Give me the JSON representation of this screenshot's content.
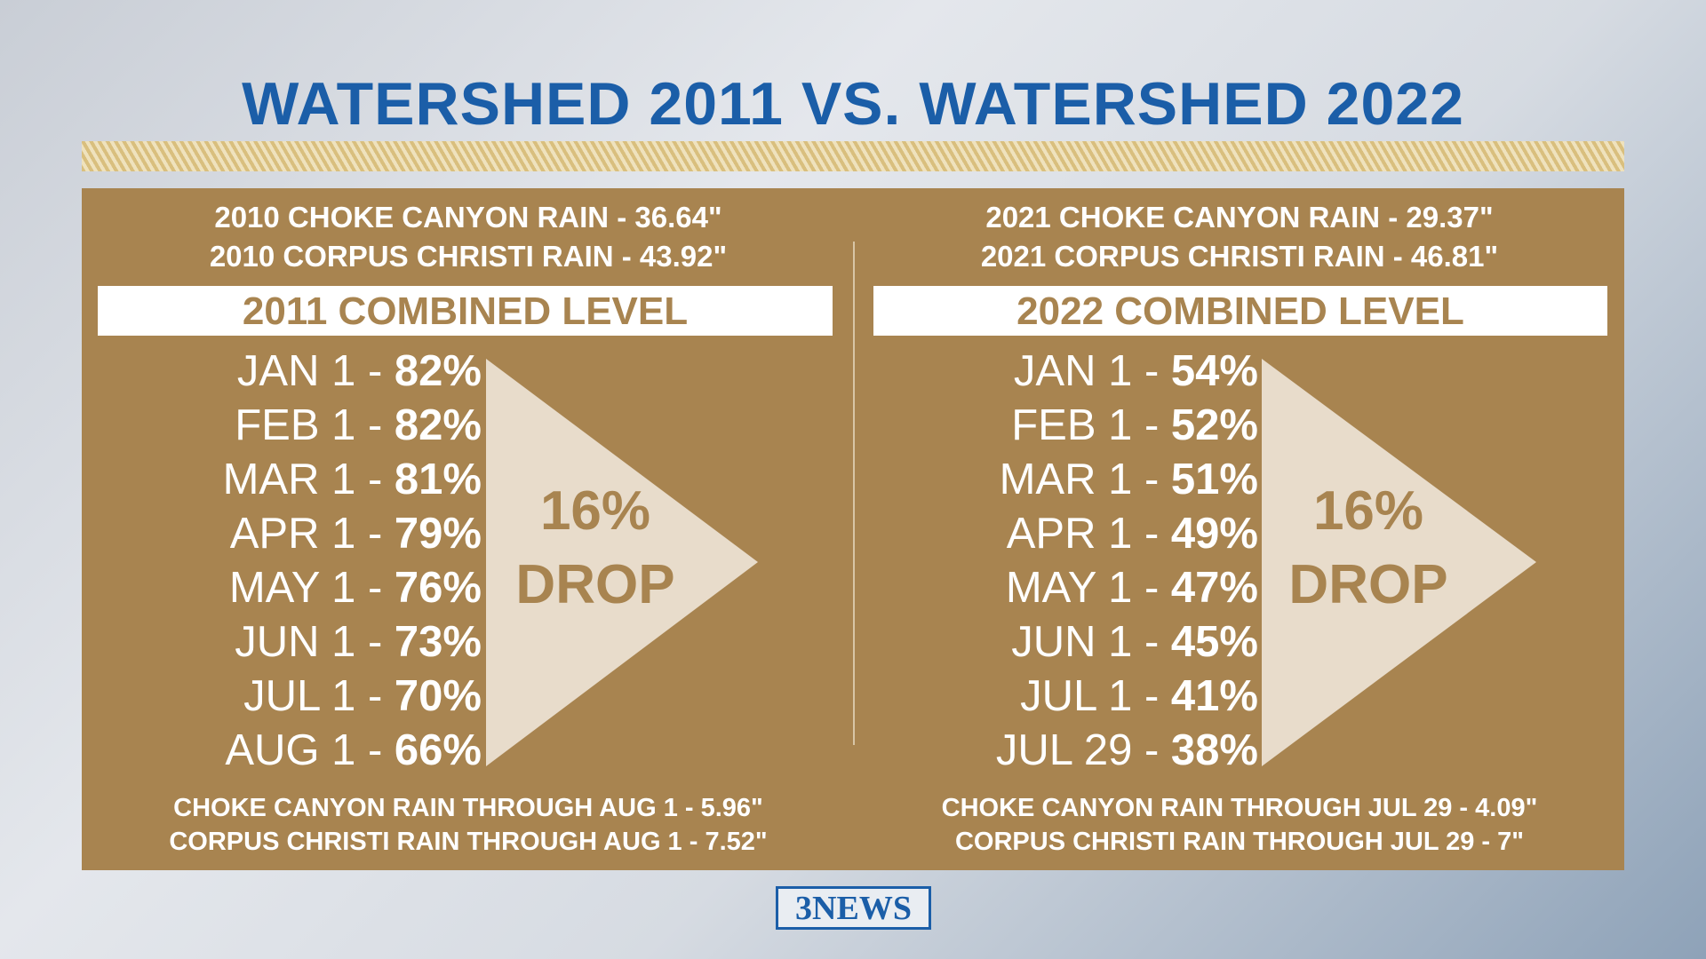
{
  "title": "WATERSHED 2011 VS. WATERSHED 2022",
  "panels": [
    {
      "rain_lines": [
        "2010 CHOKE CANYON RAIN - 36.64\"",
        "2010 CORPUS CHRISTI RAIN - 43.92\""
      ],
      "heading": "2011 COMBINED LEVEL",
      "rows": [
        {
          "date": "JAN 1 -",
          "value": "82%"
        },
        {
          "date": "FEB 1 -",
          "value": "82%"
        },
        {
          "date": "MAR 1 -",
          "value": "81%"
        },
        {
          "date": "APR 1 -",
          "value": "79%"
        },
        {
          "date": "MAY 1 -",
          "value": "76%"
        },
        {
          "date": "JUN 1 -",
          "value": "73%"
        },
        {
          "date": "JUL 1 -",
          "value": "70%"
        },
        {
          "date": "AUG 1 -",
          "value": "66%"
        }
      ],
      "drop": {
        "percent": "16%",
        "word": "DROP"
      },
      "footer_lines": [
        "CHOKE CANYON RAIN THROUGH AUG 1 - 5.96\"",
        "CORPUS CHRISTI RAIN THROUGH AUG 1 - 7.52\""
      ]
    },
    {
      "rain_lines": [
        "2021 CHOKE CANYON RAIN - 29.37\"",
        "2021 CORPUS CHRISTI RAIN - 46.81\""
      ],
      "heading": "2022 COMBINED LEVEL",
      "rows": [
        {
          "date": "JAN 1 -",
          "value": "54%"
        },
        {
          "date": "FEB 1 -",
          "value": "52%"
        },
        {
          "date": "MAR 1 -",
          "value": "51%"
        },
        {
          "date": "APR 1 -",
          "value": "49%"
        },
        {
          "date": "MAY 1 -",
          "value": "47%"
        },
        {
          "date": "JUN 1 -",
          "value": "45%"
        },
        {
          "date": "JUL 1 -",
          "value": "41%"
        },
        {
          "date": "JUL 29 -",
          "value": "38%"
        }
      ],
      "drop": {
        "percent": "16%",
        "word": "DROP"
      },
      "footer_lines": [
        "CHOKE CANYON RAIN THROUGH JUL 29 - 4.09\"",
        "CORPUS CHRISTI RAIN THROUGH JUL 29 - 7\""
      ]
    }
  ],
  "logo": "3NEWS"
}
